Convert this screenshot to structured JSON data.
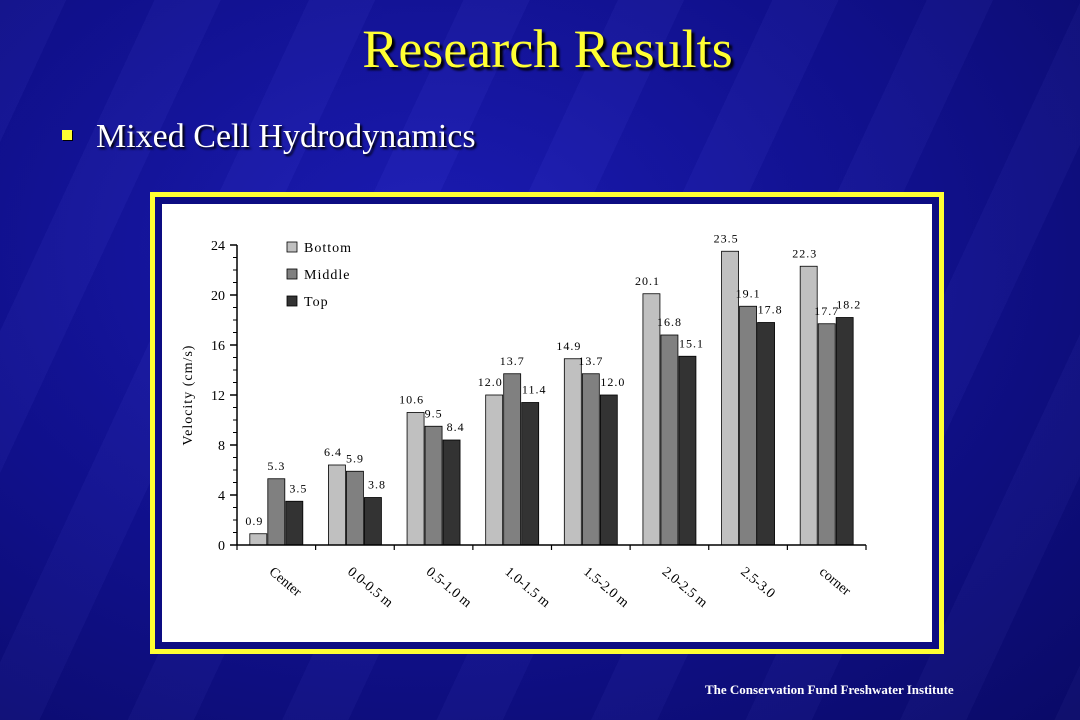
{
  "slide": {
    "title": "Research Results",
    "bullet": "Mixed Cell Hydrodynamics",
    "footer": "The Conservation Fund Freshwater Institute"
  },
  "chart_data": {
    "type": "bar",
    "title": "",
    "xlabel": "",
    "ylabel": "Velocity (cm/s)",
    "ylim": [
      0,
      24
    ],
    "yticks": [
      0,
      4,
      8,
      12,
      16,
      20,
      24
    ],
    "categories": [
      "Center",
      "0.0-0.5 m",
      "0.5-1.0 m",
      "1.0-1.5 m",
      "1.5-2.0 m",
      "2.0-2.5 m",
      "2.5-3.0",
      "corner"
    ],
    "series": [
      {
        "name": "Bottom",
        "color": "#c0c0c0",
        "values": [
          0.9,
          6.4,
          10.6,
          12.0,
          14.9,
          20.1,
          23.5,
          22.3
        ],
        "labels": [
          "0.9",
          "6.4",
          "10.6",
          "12.0",
          "14.9",
          "20.1",
          "23.5",
          "22.3"
        ]
      },
      {
        "name": "Middle",
        "color": "#808080",
        "values": [
          5.3,
          5.9,
          9.5,
          13.7,
          13.7,
          16.8,
          19.1,
          17.7
        ],
        "labels": [
          "5.3",
          "5.9",
          "9.5",
          "13.7",
          "13.7",
          "16.8",
          "19.1",
          "17.7"
        ]
      },
      {
        "name": "Top",
        "color": "#333333",
        "values": [
          3.5,
          3.8,
          8.4,
          11.4,
          12.0,
          15.1,
          17.8,
          18.2
        ],
        "labels": [
          "3.5",
          "3.8",
          "8.4",
          "11.4",
          "12.0",
          "15.1",
          "17.8",
          "18.2"
        ]
      }
    ],
    "legend_position": "top-left",
    "grid": false
  }
}
